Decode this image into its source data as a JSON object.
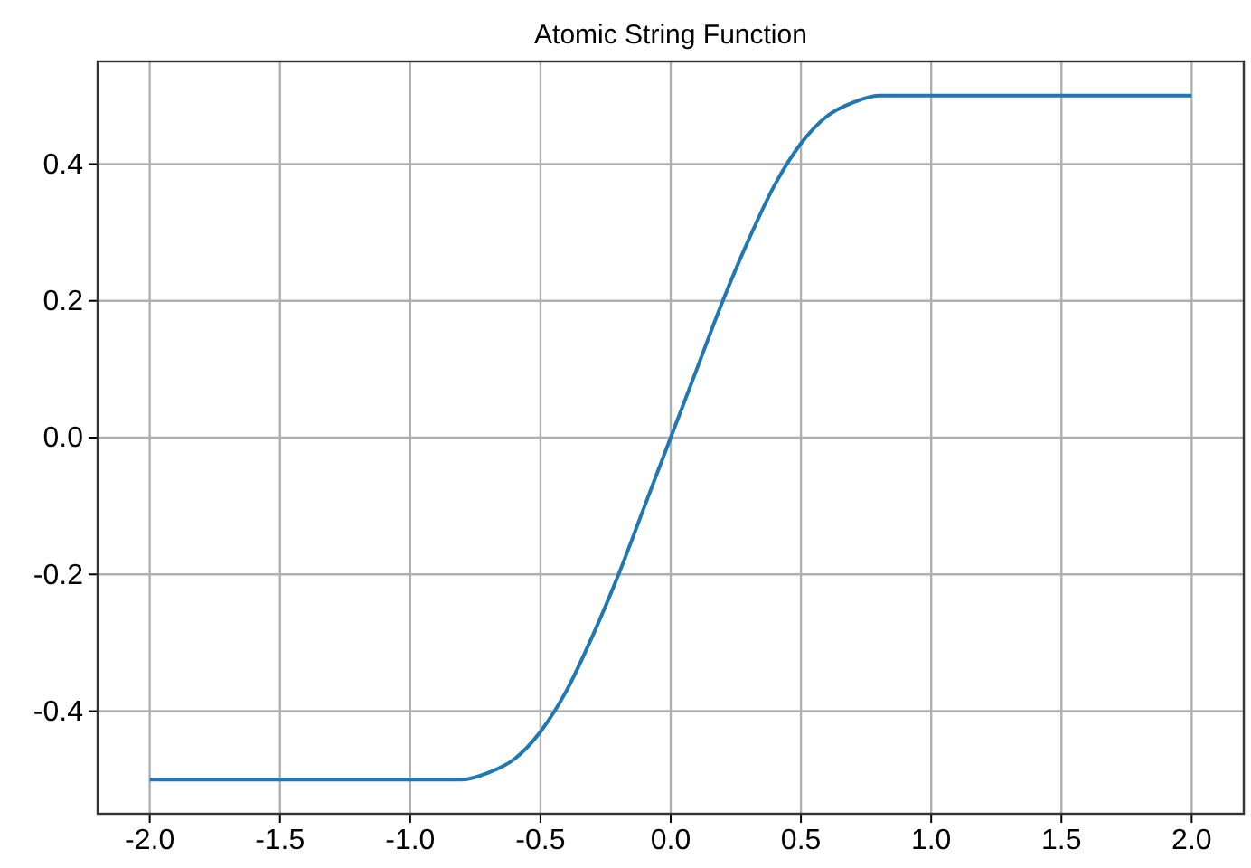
{
  "chart_data": {
    "type": "line",
    "title": "Atomic String Function",
    "x": [
      -2,
      -1,
      -0.9,
      -0.8,
      -0.7,
      -0.6,
      -0.5,
      -0.4,
      -0.3,
      -0.2,
      -0.1,
      0,
      0.1,
      0.2,
      0.3,
      0.4,
      0.5,
      0.6,
      0.7,
      0.8,
      0.9,
      1,
      2
    ],
    "series": [
      {
        "color": "#1f77b4",
        "values": [
          -0.5,
          -0.5,
          -0.5,
          -0.5,
          -0.49,
          -0.47,
          -0.43,
          -0.37,
          -0.29,
          -0.2,
          -0.1,
          0,
          0.1,
          0.2,
          0.29,
          0.37,
          0.43,
          0.47,
          0.49,
          0.5,
          0.5,
          0.5,
          0.5
        ]
      }
    ],
    "xlim": [
      -2.2,
      2.2
    ],
    "ylim": [
      -0.55,
      0.55
    ],
    "xticks": [
      {
        "value": -2,
        "label": "-2.0"
      },
      {
        "value": -1.5,
        "label": "-1.5"
      },
      {
        "value": -1,
        "label": "-1.0"
      },
      {
        "value": -0.5,
        "label": "-0.5"
      },
      {
        "value": 0,
        "label": "0.0"
      },
      {
        "value": 0.5,
        "label": "0.5"
      },
      {
        "value": 1,
        "label": "1.0"
      },
      {
        "value": 1.5,
        "label": "1.5"
      },
      {
        "value": 2,
        "label": "2.0"
      }
    ],
    "yticks": [
      {
        "value": -0.4,
        "label": "-0.4"
      },
      {
        "value": -0.2,
        "label": "-0.2"
      },
      {
        "value": 0,
        "label": "0.0"
      },
      {
        "value": 0.2,
        "label": "0.2"
      },
      {
        "value": 0.4,
        "label": "0.4"
      }
    ],
    "grid": true,
    "marker": "none",
    "line_style": "solid"
  }
}
